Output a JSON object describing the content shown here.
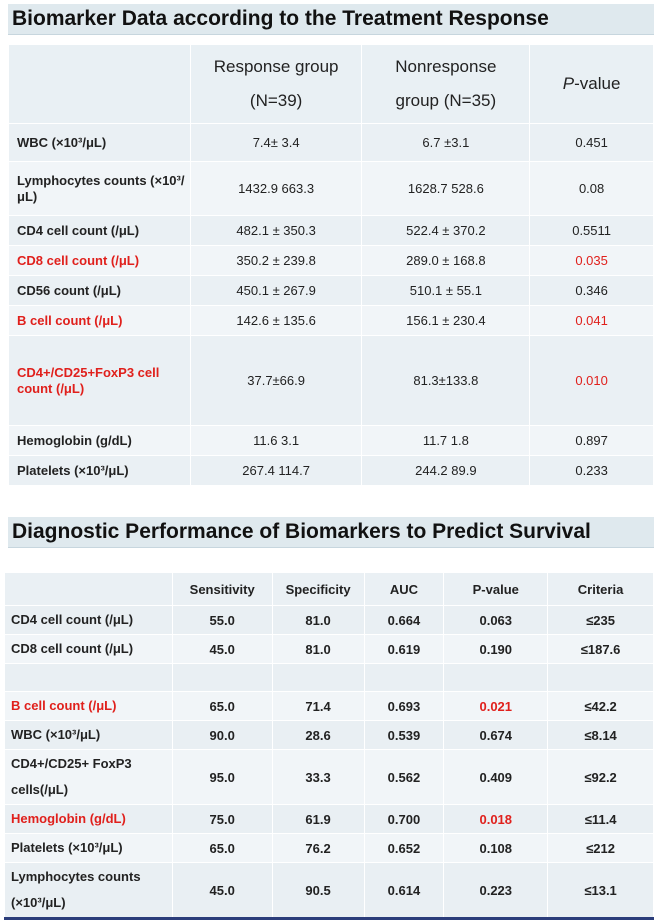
{
  "table1": {
    "title": "Biomarker Data according to the Treatment Response",
    "headers": {
      "blank": "",
      "response_l1": "Response group",
      "response_l2": "(N=39)",
      "nonresponse_l1": "Nonresponse",
      "nonresponse_l2": "group (N=35)",
      "pvalue_p": "P",
      "pvalue_rest": "-value"
    },
    "rows": [
      {
        "label": "WBC (×10³/μL)",
        "response": "7.4± 3.4",
        "nonresponse": "6.7 ±3.1",
        "p": "0.451",
        "highlight": false
      },
      {
        "label": "Lymphocytes counts (×10³/μL)",
        "response": "1432.9 663.3",
        "nonresponse": "1628.7 528.6",
        "p": "0.08",
        "highlight": false
      },
      {
        "label": "CD4 cell count (/μL)",
        "response": "482.1 ± 350.3",
        "nonresponse": "522.4  ± 370.2",
        "p": "0.5511",
        "highlight": false
      },
      {
        "label": "CD8 cell count (/μL)",
        "response": "350.2 ± 239.8",
        "nonresponse": "289.0 ± 168.8",
        "p": "0.035",
        "highlight": true
      },
      {
        "label": "CD56 count (/μL)",
        "response": "450.1 ± 267.9",
        "nonresponse": "510.1 ± 55.1",
        "p": "0.346",
        "highlight": false
      },
      {
        "label": "B cell count (/μL)",
        "response": "142.6 ± 135.6",
        "nonresponse": "156.1 ± 230.4",
        "p": "0.041",
        "highlight": true
      },
      {
        "label": "CD4+/CD25+FoxP3 cell count (/μL)",
        "response": "37.7±66.9",
        "nonresponse": "81.3±133.8",
        "p": "0.010",
        "highlight": true
      },
      {
        "label": "Hemoglobin (g/dL)",
        "response": "11.6 3.1",
        "nonresponse": "11.7 1.8",
        "p": "0.897",
        "highlight": false
      },
      {
        "label": "Platelets (×10³/μL)",
        "response": "267.4 114.7",
        "nonresponse": "244.2 89.9",
        "p": "0.233",
        "highlight": false
      }
    ]
  },
  "table2": {
    "title": "Diagnostic Performance of Biomarkers to Predict Survival",
    "headers": [
      "",
      "Sensitivity",
      "Specificity",
      "AUC",
      "P-value",
      "Criteria"
    ],
    "rows": [
      {
        "label": "CD4 cell count (/μL)",
        "sens": "55.0",
        "spec": "81.0",
        "auc": "0.664",
        "p": "0.063",
        "crit": "≤235",
        "highlight": false
      },
      {
        "label": "CD8 cell count (/μL)",
        "sens": "45.0",
        "spec": "81.0",
        "auc": "0.619",
        "p": "0.190",
        "crit": "≤187.6",
        "highlight": false
      },
      {
        "label": "",
        "sens": "",
        "spec": "",
        "auc": "",
        "p": "",
        "crit": "",
        "highlight": false,
        "spacer": true
      },
      {
        "label": "B cell count (/μL)",
        "sens": "65.0",
        "spec": "71.4",
        "auc": "0.693",
        "p": "0.021",
        "crit": "≤42.2",
        "highlight": true
      },
      {
        "label": "WBC (×10³/μL)",
        "sens": "90.0",
        "spec": "28.6",
        "auc": "0.539",
        "p": "0.674",
        "crit": "≤8.14",
        "highlight": false
      },
      {
        "label": "CD4+/CD25+     FoxP3 cells(/μL)",
        "sens": "95.0",
        "spec": "33.3",
        "auc": "0.562",
        "p": "0.409",
        "crit": "≤92.2",
        "highlight": false
      },
      {
        "label": "Hemoglobin (g/dL)",
        "sens": "75.0",
        "spec": "61.9",
        "auc": "0.700",
        "p": "0.018",
        "crit": "≤11.4",
        "highlight": true
      },
      {
        "label": "Platelets (×10³/μL)",
        "sens": "65.0",
        "spec": "76.2",
        "auc": "0.652",
        "p": "0.108",
        "crit": "≤212",
        "highlight": false
      },
      {
        "label": "Lymphocytes    counts (×10³/μL)",
        "sens": "45.0",
        "spec": "90.5",
        "auc": "0.614",
        "p": "0.223",
        "crit": "≤13.1",
        "highlight": false
      }
    ]
  }
}
